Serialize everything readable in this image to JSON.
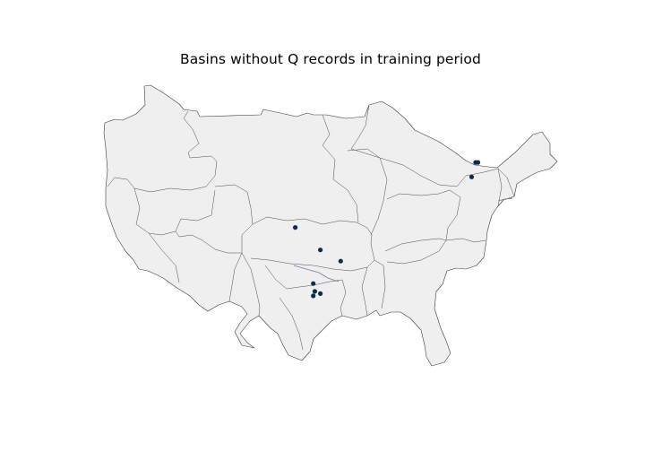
{
  "title": "Basins without Q records in training period",
  "colors": {
    "background": "#ffffff",
    "land_fill": "#efefef",
    "boundary": "#3a3a3a",
    "basin_marker": "#0d2b4e"
  },
  "basins": [
    {
      "lon": -100.3,
      "lat": 36.7
    },
    {
      "lon": -97.1,
      "lat": 34.7
    },
    {
      "lon": -94.5,
      "lat": 33.7
    },
    {
      "lon": -98.0,
      "lat": 31.7
    },
    {
      "lon": -97.8,
      "lat": 31.0
    },
    {
      "lon": -97.1,
      "lat": 30.8
    },
    {
      "lon": -98.0,
      "lat": 30.6
    },
    {
      "lon": -77.3,
      "lat": 42.5
    },
    {
      "lon": -77.0,
      "lat": 42.5
    },
    {
      "lon": -77.8,
      "lat": 41.2
    }
  ]
}
